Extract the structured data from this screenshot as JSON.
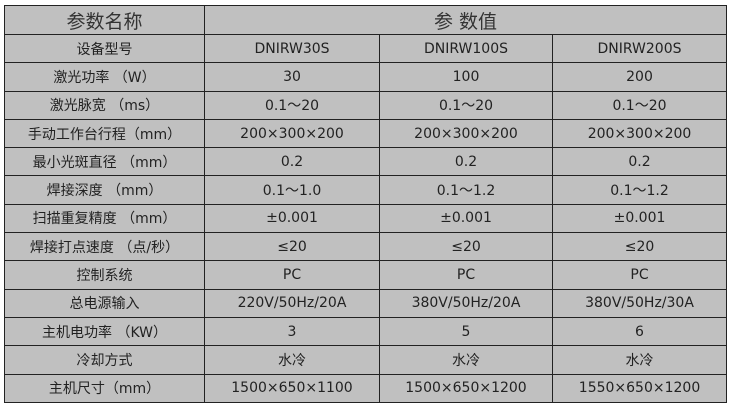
{
  "header": {
    "param_name": "参数名称",
    "param_value": "参 数值"
  },
  "rows": [
    {
      "label": "设备型号",
      "values": [
        "DNIRW30S",
        "DNIRW100S",
        "DNIRW200S"
      ]
    },
    {
      "label": "激光功率 （W）",
      "values": [
        "30",
        "100",
        "200"
      ]
    },
    {
      "label": "激光脉宽 （ms）",
      "values": [
        "0.1～20",
        "0.1～20",
        "0.1～20"
      ]
    },
    {
      "label": "手动工作台行程（mm）",
      "values": [
        "200×300×200",
        "200×300×200",
        "200×300×200"
      ]
    },
    {
      "label": "最小光斑直径 （mm）",
      "values": [
        "0.2",
        "0.2",
        "0.2"
      ]
    },
    {
      "label": "焊接深度 （mm）",
      "values": [
        "0.1～1.0",
        "0.1～1.2",
        "0.1～1.2"
      ]
    },
    {
      "label": "扫描重复精度 （mm）",
      "values": [
        "±0.001",
        "±0.001",
        "±0.001"
      ]
    },
    {
      "label": "焊接打点速度 （点/秒）",
      "values": [
        "≤20",
        "≤20",
        "≤20"
      ]
    },
    {
      "label": "控制系统",
      "values": [
        "PC",
        "PC",
        "PC"
      ]
    },
    {
      "label": "总电源输入",
      "values": [
        "220V/50Hz/20A",
        "380V/50Hz/20A",
        "380V/50Hz/30A"
      ]
    },
    {
      "label": "主机电功率 （KW）",
      "values": [
        "3",
        "5",
        "6"
      ]
    },
    {
      "label": "冷却方式",
      "values": [
        "水冷",
        "水冷",
        "水冷"
      ]
    },
    {
      "label": "主机尺寸（mm）",
      "values": [
        "1500×650×1100",
        "1500×650×1200",
        "1550×650×1200"
      ]
    }
  ]
}
